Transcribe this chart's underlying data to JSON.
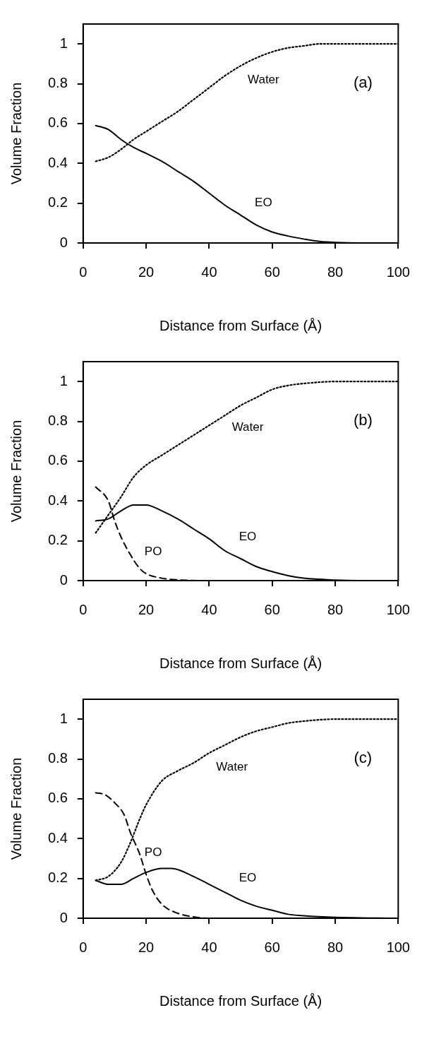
{
  "chart_data": [
    {
      "type": "line",
      "xlabel": "Distance from Surface (Å)",
      "ylabel": "Volume Fraction",
      "xlim": [
        0,
        100
      ],
      "ylim": [
        0,
        1.1
      ],
      "xticks": [
        0,
        20,
        40,
        60,
        80,
        100
      ],
      "yticks": [
        0,
        0.2,
        0.4,
        0.6,
        0.8,
        1
      ],
      "grid": false,
      "legend": false,
      "marker": "none",
      "series": [
        {
          "name": "Water",
          "color": "#000000",
          "line_style": "dotted",
          "x": [
            4,
            8,
            12,
            16,
            20,
            25,
            30,
            35,
            40,
            45,
            50,
            55,
            60,
            65,
            70,
            75,
            80,
            90,
            100
          ],
          "values": [
            0.41,
            0.43,
            0.47,
            0.52,
            0.56,
            0.61,
            0.66,
            0.72,
            0.78,
            0.84,
            0.89,
            0.93,
            0.96,
            0.98,
            0.99,
            1.0,
            1.0,
            1.0,
            1.0
          ]
        },
        {
          "name": "EO",
          "color": "#000000",
          "line_style": "solid",
          "x": [
            4,
            8,
            12,
            16,
            20,
            25,
            30,
            35,
            40,
            45,
            50,
            55,
            60,
            65,
            70,
            75,
            80,
            90,
            100
          ],
          "values": [
            0.59,
            0.57,
            0.52,
            0.48,
            0.45,
            0.41,
            0.36,
            0.31,
            0.25,
            0.19,
            0.14,
            0.09,
            0.055,
            0.035,
            0.02,
            0.008,
            0.003,
            0,
            0
          ]
        }
      ],
      "annotations": [
        "(a)"
      ]
    },
    {
      "type": "line",
      "xlabel": "Distance from Surface (Å)",
      "ylabel": "Volume Fraction",
      "xlim": [
        0,
        100
      ],
      "ylim": [
        0,
        1.1
      ],
      "xticks": [
        0,
        20,
        40,
        60,
        80,
        100
      ],
      "yticks": [
        0,
        0.2,
        0.4,
        0.6,
        0.8,
        1
      ],
      "grid": false,
      "legend": false,
      "marker": "none",
      "series": [
        {
          "name": "Water",
          "color": "#000000",
          "line_style": "dotted",
          "x": [
            4,
            8,
            12,
            16,
            20,
            25,
            30,
            35,
            40,
            45,
            50,
            55,
            60,
            65,
            70,
            80,
            100
          ],
          "values": [
            0.24,
            0.33,
            0.42,
            0.52,
            0.58,
            0.63,
            0.68,
            0.73,
            0.78,
            0.83,
            0.88,
            0.92,
            0.96,
            0.98,
            0.99,
            1.0,
            1.0
          ]
        },
        {
          "name": "EO",
          "color": "#000000",
          "line_style": "solid",
          "x": [
            4,
            8,
            12,
            16,
            20,
            25,
            30,
            35,
            40,
            45,
            50,
            55,
            60,
            65,
            70,
            80,
            90,
            100
          ],
          "values": [
            0.3,
            0.31,
            0.35,
            0.38,
            0.38,
            0.35,
            0.31,
            0.26,
            0.21,
            0.15,
            0.11,
            0.07,
            0.045,
            0.025,
            0.012,
            0.003,
            0,
            0
          ]
        },
        {
          "name": "PO",
          "color": "#000000",
          "line_style": "dashed",
          "x": [
            4,
            8,
            10,
            12,
            15,
            18,
            20,
            25,
            30,
            40,
            100
          ],
          "values": [
            0.47,
            0.4,
            0.3,
            0.22,
            0.13,
            0.06,
            0.035,
            0.012,
            0.004,
            0,
            0
          ]
        }
      ],
      "annotations": [
        "(b)"
      ]
    },
    {
      "type": "line",
      "xlabel": "Distance from Surface (Å)",
      "ylabel": "Volume Fraction",
      "xlim": [
        0,
        100
      ],
      "ylim": [
        0,
        1.1
      ],
      "xticks": [
        0,
        20,
        40,
        60,
        80,
        100
      ],
      "yticks": [
        0,
        0.2,
        0.4,
        0.6,
        0.8,
        1
      ],
      "grid": false,
      "legend": false,
      "marker": "none",
      "series": [
        {
          "name": "Water",
          "color": "#000000",
          "line_style": "dotted",
          "x": [
            4,
            8,
            12,
            15,
            18,
            20,
            25,
            30,
            35,
            40,
            45,
            50,
            55,
            60,
            65,
            70,
            80,
            100
          ],
          "values": [
            0.19,
            0.21,
            0.28,
            0.38,
            0.5,
            0.57,
            0.69,
            0.74,
            0.78,
            0.83,
            0.87,
            0.91,
            0.94,
            0.96,
            0.98,
            0.99,
            1.0,
            1.0
          ]
        },
        {
          "name": "EO",
          "color": "#000000",
          "line_style": "solid",
          "x": [
            4,
            8,
            12,
            16,
            20,
            25,
            28,
            35,
            40,
            45,
            50,
            55,
            60,
            65,
            70,
            80,
            100
          ],
          "values": [
            0.19,
            0.17,
            0.17,
            0.2,
            0.23,
            0.25,
            0.25,
            0.21,
            0.17,
            0.13,
            0.09,
            0.06,
            0.04,
            0.02,
            0.012,
            0.004,
            0
          ]
        },
        {
          "name": "PO",
          "color": "#000000",
          "line_style": "dashed",
          "x": [
            4,
            7,
            10,
            13,
            15,
            18,
            20,
            22,
            25,
            30,
            35,
            40,
            100
          ],
          "values": [
            0.63,
            0.62,
            0.58,
            0.52,
            0.43,
            0.32,
            0.22,
            0.14,
            0.07,
            0.025,
            0.007,
            0,
            0
          ]
        }
      ],
      "annotations": [
        "(c)"
      ]
    }
  ]
}
